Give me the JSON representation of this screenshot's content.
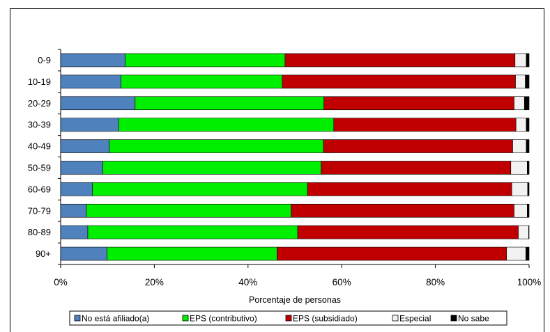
{
  "chart_data": {
    "type": "bar",
    "orientation": "horizontal",
    "stacked": true,
    "categories": [
      "0-9",
      "10-19",
      "20-29",
      "30-39",
      "40-49",
      "50-59",
      "60-69",
      "70-79",
      "80-89",
      "90+"
    ],
    "series": [
      {
        "name": "No está afiliado(a)",
        "color": "#4f81bd",
        "values": [
          13.8,
          12.9,
          15.9,
          12.4,
          10.4,
          9.0,
          6.8,
          5.5,
          5.8,
          9.9
        ]
      },
      {
        "name": "EPS (contributivo)",
        "color": "#00ee00",
        "values": [
          34.1,
          34.4,
          40.3,
          45.9,
          45.7,
          46.6,
          45.9,
          43.7,
          44.8,
          36.3
        ]
      },
      {
        "name": "EPS (subsidiado)",
        "color": "#c00000",
        "values": [
          49.1,
          49.8,
          40.6,
          38.9,
          40.4,
          40.5,
          43.6,
          47.6,
          47.1,
          49.0
        ]
      },
      {
        "name": "Especial",
        "color": "#f2f2f2",
        "values": [
          2.4,
          2.1,
          2.2,
          2.2,
          2.9,
          3.5,
          3.4,
          2.8,
          2.2,
          4.1
        ]
      },
      {
        "name": "No sabe",
        "color": "#000000",
        "values": [
          0.6,
          0.8,
          1.0,
          0.6,
          0.6,
          0.4,
          0.3,
          0.4,
          0.1,
          0.7
        ]
      }
    ],
    "xlim": [
      0,
      100
    ],
    "xticks": [
      "0%",
      "20%",
      "40%",
      "60%",
      "80%",
      "100%"
    ],
    "xlabel": "Porcentaje de personas",
    "ylabel": "",
    "title": "",
    "grid": false,
    "legend_position": "bottom"
  }
}
